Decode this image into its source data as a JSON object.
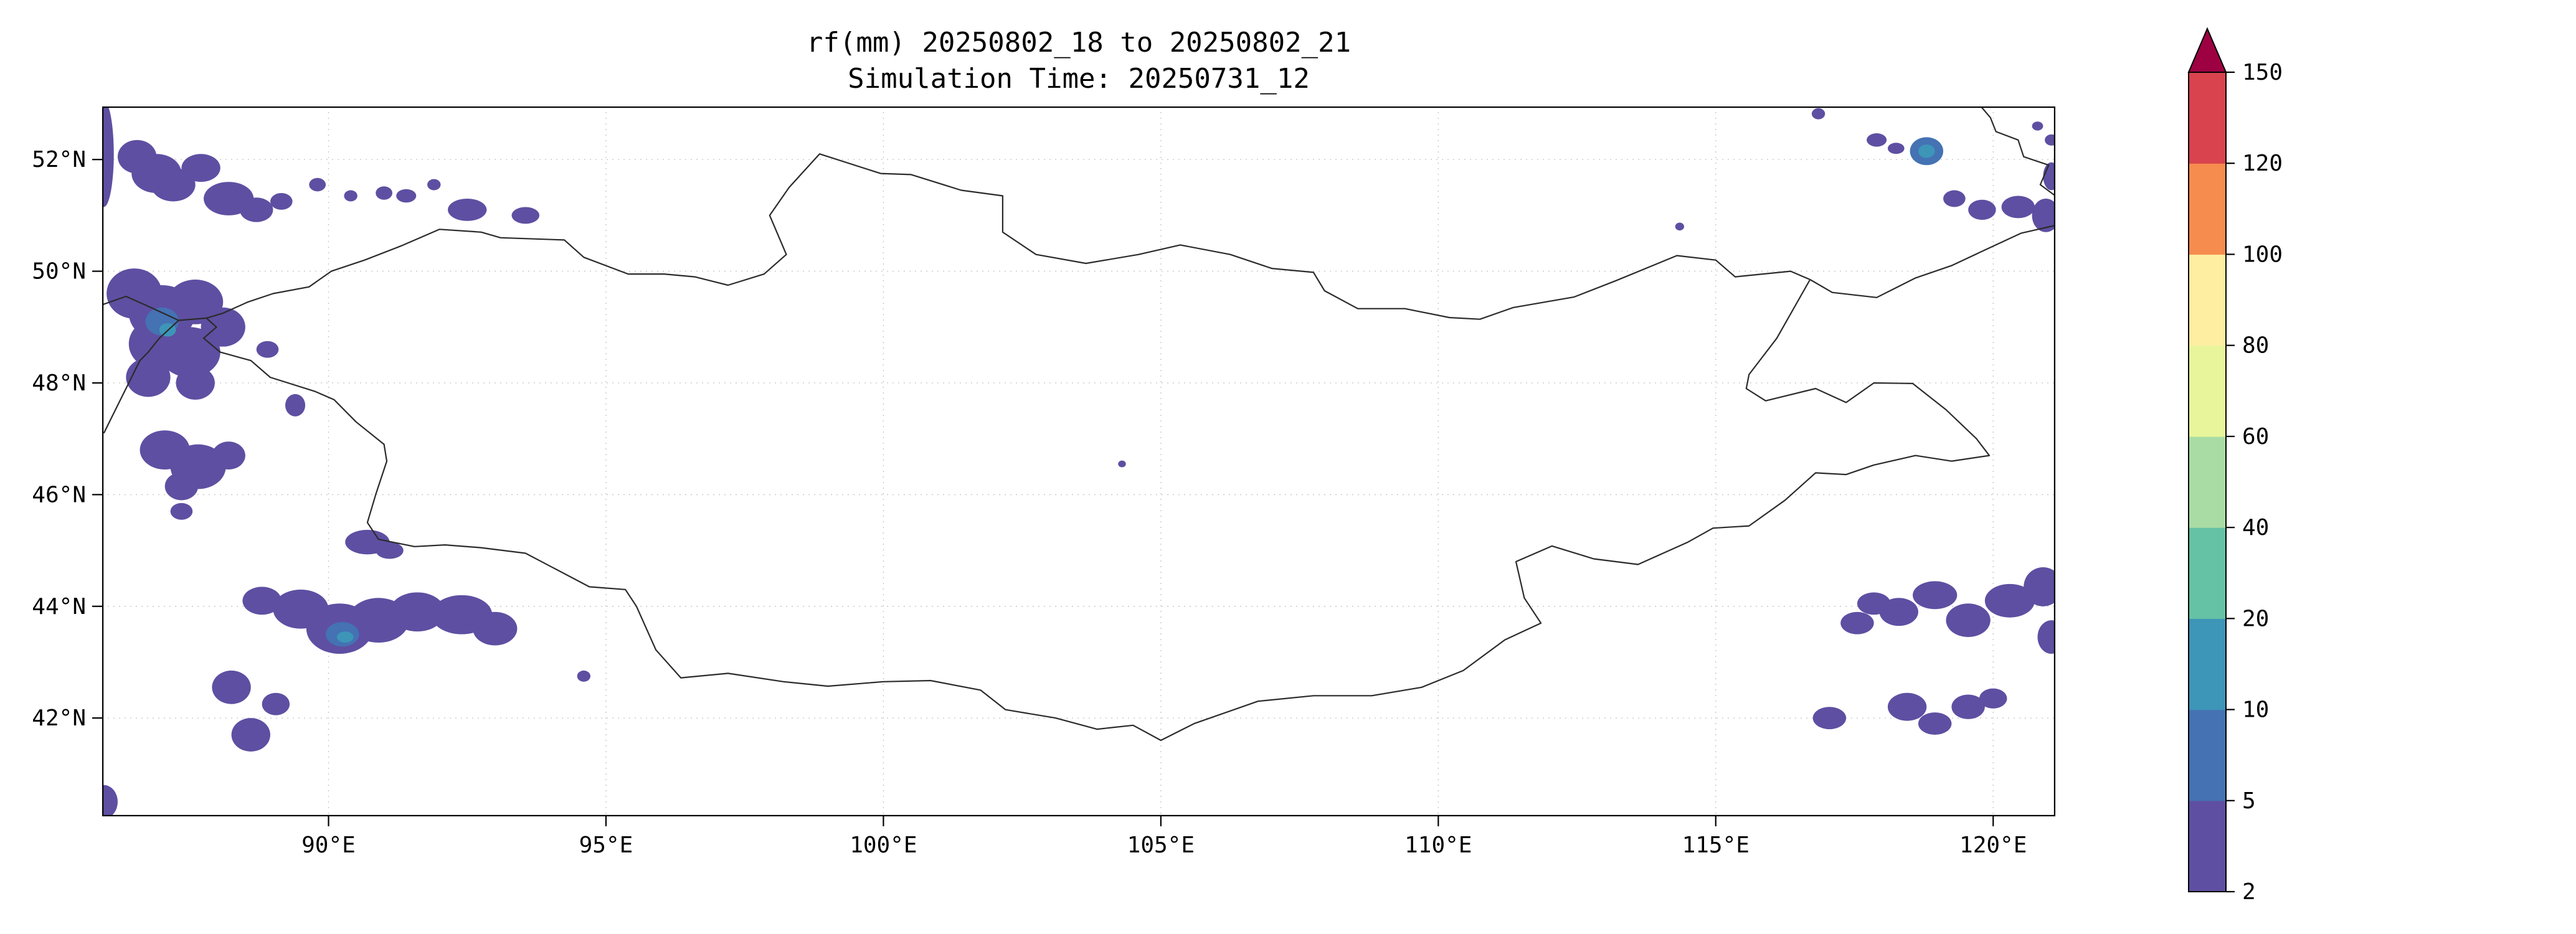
{
  "figure": {
    "title": "rf(mm) 20250802_18 to 20250802_21",
    "subtitle": "Simulation Time: 20250731_12"
  },
  "chart_data": {
    "type": "heatmap",
    "subtype": "filled-contour-precipitation-map",
    "title": "rf(mm) 20250802_18 to 20250802_21",
    "subtitle": "Simulation Time: 20250731_12",
    "variable": "rf",
    "unit": "mm",
    "lon_range": [
      85.92,
      121.12
    ],
    "lat_range": [
      40.24,
      52.95
    ],
    "grid": true,
    "x_ticks": [
      {
        "lon": 90,
        "label": "90°E"
      },
      {
        "lon": 95,
        "label": "95°E"
      },
      {
        "lon": 100,
        "label": "100°E"
      },
      {
        "lon": 105,
        "label": "105°E"
      },
      {
        "lon": 110,
        "label": "110°E"
      },
      {
        "lon": 115,
        "label": "115°E"
      },
      {
        "lon": 120,
        "label": "120°E"
      }
    ],
    "y_ticks": [
      {
        "lat": 52,
        "label": "52°N"
      },
      {
        "lat": 50,
        "label": "50°N"
      },
      {
        "lat": 48,
        "label": "48°N"
      },
      {
        "lat": 46,
        "label": "46°N"
      },
      {
        "lat": 44,
        "label": "44°N"
      },
      {
        "lat": 42,
        "label": "42°N"
      }
    ],
    "colorbar": {
      "levels": [
        2,
        5,
        10,
        20,
        40,
        60,
        80,
        100,
        120,
        150
      ],
      "colors": [
        "#5e4fa2",
        "#4472b3",
        "#3d95b8",
        "#66c2a5",
        "#a9dca4",
        "#e8f59b",
        "#fdeea2",
        "#f78c4f",
        "#d8434e"
      ],
      "extend_max_color": "#9e0142",
      "outline_color": "#000000"
    },
    "border_color": "#2b2b2b",
    "grid_color": "#c9c9c9",
    "borders": {
      "mongolia": [
        [
          87.8,
          49.16
        ],
        [
          88.1,
          49.25
        ],
        [
          88.55,
          49.45
        ],
        [
          89.0,
          49.6
        ],
        [
          89.65,
          49.72
        ],
        [
          90.05,
          50.0
        ],
        [
          90.65,
          50.2
        ],
        [
          91.3,
          50.45
        ],
        [
          92.0,
          50.75
        ],
        [
          92.75,
          50.7
        ],
        [
          93.1,
          50.6
        ],
        [
          94.25,
          50.56
        ],
        [
          94.6,
          50.25
        ],
        [
          95.4,
          49.95
        ],
        [
          96.05,
          49.95
        ],
        [
          96.6,
          49.9
        ],
        [
          97.2,
          49.75
        ],
        [
          97.85,
          49.95
        ],
        [
          98.25,
          50.3
        ],
        [
          97.95,
          51.0
        ],
        [
          98.3,
          51.5
        ],
        [
          98.85,
          52.1
        ],
        [
          99.95,
          51.75
        ],
        [
          100.5,
          51.73
        ],
        [
          101.4,
          51.45
        ],
        [
          102.15,
          51.35
        ],
        [
          102.15,
          50.7
        ],
        [
          102.75,
          50.3
        ],
        [
          103.65,
          50.14
        ],
        [
          104.6,
          50.3
        ],
        [
          105.35,
          50.47
        ],
        [
          106.25,
          50.3
        ],
        [
          107.0,
          50.05
        ],
        [
          107.75,
          49.98
        ],
        [
          107.95,
          49.65
        ],
        [
          108.55,
          49.33
        ],
        [
          109.4,
          49.33
        ],
        [
          110.2,
          49.17
        ],
        [
          110.75,
          49.14
        ],
        [
          111.35,
          49.35
        ],
        [
          112.45,
          49.54
        ],
        [
          113.2,
          49.83
        ],
        [
          114.3,
          50.28
        ],
        [
          115.0,
          50.2
        ],
        [
          115.35,
          49.9
        ],
        [
          116.35,
          50.0
        ],
        [
          116.7,
          49.85
        ],
        [
          116.1,
          48.8
        ],
        [
          115.6,
          48.15
        ],
        [
          115.55,
          47.9
        ],
        [
          115.9,
          47.68
        ],
        [
          116.8,
          47.9
        ],
        [
          117.35,
          47.65
        ],
        [
          117.85,
          48.0
        ],
        [
          118.55,
          47.99
        ],
        [
          119.15,
          47.52
        ],
        [
          119.7,
          47.0
        ],
        [
          119.93,
          46.7
        ],
        [
          119.25,
          46.6
        ],
        [
          118.6,
          46.7
        ],
        [
          117.85,
          46.53
        ],
        [
          117.35,
          46.36
        ],
        [
          116.8,
          46.39
        ],
        [
          116.25,
          45.9
        ],
        [
          115.6,
          45.44
        ],
        [
          114.95,
          45.4
        ],
        [
          114.5,
          45.15
        ],
        [
          113.6,
          44.75
        ],
        [
          112.8,
          44.85
        ],
        [
          112.05,
          45.08
        ],
        [
          111.4,
          44.8
        ],
        [
          111.55,
          44.15
        ],
        [
          111.85,
          43.7
        ],
        [
          111.2,
          43.4
        ],
        [
          110.45,
          42.85
        ],
        [
          109.7,
          42.55
        ],
        [
          108.8,
          42.4
        ],
        [
          107.75,
          42.4
        ],
        [
          106.75,
          42.3
        ],
        [
          105.6,
          41.9
        ],
        [
          105.0,
          41.6
        ],
        [
          104.5,
          41.87
        ],
        [
          103.85,
          41.8
        ],
        [
          103.1,
          42.0
        ],
        [
          102.2,
          42.15
        ],
        [
          101.75,
          42.5
        ],
        [
          100.85,
          42.67
        ],
        [
          100.0,
          42.65
        ],
        [
          99.0,
          42.57
        ],
        [
          98.2,
          42.65
        ],
        [
          97.2,
          42.8
        ],
        [
          96.35,
          42.72
        ],
        [
          95.9,
          43.22
        ],
        [
          95.55,
          44.0
        ],
        [
          95.35,
          44.3
        ],
        [
          94.7,
          44.35
        ],
        [
          93.55,
          44.95
        ],
        [
          92.75,
          45.05
        ],
        [
          92.1,
          45.1
        ],
        [
          91.55,
          45.07
        ],
        [
          90.9,
          45.2
        ],
        [
          90.7,
          45.5
        ],
        [
          90.85,
          46.0
        ],
        [
          91.05,
          46.6
        ],
        [
          91.0,
          46.9
        ],
        [
          90.5,
          47.3
        ],
        [
          90.1,
          47.7
        ],
        [
          89.75,
          47.85
        ],
        [
          88.95,
          48.1
        ],
        [
          88.6,
          48.4
        ],
        [
          88.05,
          48.55
        ],
        [
          87.75,
          48.8
        ],
        [
          87.98,
          49.0
        ],
        [
          87.8,
          49.16
        ]
      ],
      "west_1": [
        [
          85.92,
          49.4
        ],
        [
          86.35,
          49.55
        ],
        [
          86.8,
          49.35
        ],
        [
          87.3,
          49.12
        ],
        [
          87.8,
          49.16
        ]
      ],
      "west_2": [
        [
          87.3,
          49.12
        ],
        [
          86.95,
          48.8
        ],
        [
          86.75,
          48.55
        ],
        [
          86.6,
          48.4
        ],
        [
          86.25,
          47.7
        ],
        [
          85.95,
          47.1
        ]
      ],
      "northeast_1": [
        [
          116.7,
          49.85
        ],
        [
          117.1,
          49.62
        ],
        [
          117.9,
          49.53
        ],
        [
          118.6,
          49.88
        ],
        [
          119.25,
          50.1
        ],
        [
          119.85,
          50.38
        ],
        [
          120.5,
          50.68
        ],
        [
          121.12,
          50.82
        ]
      ],
      "northeast_2": [
        [
          121.12,
          51.35
        ],
        [
          120.85,
          51.55
        ],
        [
          121.0,
          51.9
        ],
        [
          120.55,
          52.05
        ],
        [
          120.45,
          52.35
        ],
        [
          120.05,
          52.5
        ],
        [
          119.95,
          52.75
        ],
        [
          119.78,
          52.95
        ]
      ]
    },
    "rain_cells": [
      [
        85.95,
        52.1,
        0.18,
        0.95,
        0
      ],
      [
        86.55,
        52.05,
        0.35,
        0.3,
        0
      ],
      [
        86.9,
        51.75,
        0.45,
        0.35,
        0
      ],
      [
        87.2,
        51.55,
        0.4,
        0.3,
        0
      ],
      [
        87.7,
        51.85,
        0.35,
        0.25,
        0
      ],
      [
        88.2,
        51.3,
        0.45,
        0.3,
        0
      ],
      [
        88.7,
        51.1,
        0.3,
        0.22,
        0
      ],
      [
        89.15,
        51.25,
        0.2,
        0.15,
        0
      ],
      [
        89.8,
        51.55,
        0.15,
        0.12,
        0
      ],
      [
        90.4,
        51.35,
        0.12,
        0.1,
        0
      ],
      [
        91.0,
        51.4,
        0.15,
        0.12,
        0
      ],
      [
        91.4,
        51.35,
        0.18,
        0.12,
        0
      ],
      [
        91.9,
        51.55,
        0.12,
        0.1,
        0
      ],
      [
        92.5,
        51.1,
        0.35,
        0.2,
        0
      ],
      [
        93.55,
        51.0,
        0.25,
        0.15,
        0
      ],
      [
        86.5,
        49.6,
        0.5,
        0.45,
        0
      ],
      [
        87.0,
        49.25,
        0.6,
        0.5,
        0
      ],
      [
        87.6,
        49.45,
        0.5,
        0.4,
        0
      ],
      [
        86.9,
        48.7,
        0.5,
        0.45,
        0
      ],
      [
        87.5,
        48.55,
        0.55,
        0.45,
        0
      ],
      [
        88.1,
        49.0,
        0.4,
        0.35,
        0
      ],
      [
        86.75,
        48.1,
        0.4,
        0.35,
        0
      ],
      [
        87.6,
        48.0,
        0.35,
        0.3,
        0
      ],
      [
        87.0,
        49.1,
        0.3,
        0.25,
        1
      ],
      [
        87.1,
        48.95,
        0.15,
        0.12,
        2
      ],
      [
        88.9,
        48.6,
        0.2,
        0.15,
        0
      ],
      [
        89.4,
        47.6,
        0.18,
        0.2,
        0
      ],
      [
        87.05,
        46.8,
        0.45,
        0.35,
        0
      ],
      [
        87.65,
        46.5,
        0.5,
        0.4,
        0
      ],
      [
        88.2,
        46.7,
        0.3,
        0.25,
        0
      ],
      [
        87.35,
        46.15,
        0.3,
        0.25,
        0
      ],
      [
        87.35,
        45.7,
        0.2,
        0.15,
        0
      ],
      [
        90.7,
        45.15,
        0.4,
        0.22,
        0
      ],
      [
        91.1,
        45.0,
        0.25,
        0.15,
        0
      ],
      [
        88.8,
        44.1,
        0.35,
        0.25,
        0
      ],
      [
        89.5,
        43.95,
        0.5,
        0.35,
        0
      ],
      [
        90.2,
        43.6,
        0.6,
        0.45,
        0
      ],
      [
        90.9,
        43.75,
        0.55,
        0.4,
        0
      ],
      [
        91.6,
        43.9,
        0.5,
        0.35,
        0
      ],
      [
        92.4,
        43.85,
        0.55,
        0.35,
        0
      ],
      [
        93.0,
        43.6,
        0.4,
        0.3,
        0
      ],
      [
        90.25,
        43.5,
        0.3,
        0.22,
        1
      ],
      [
        90.3,
        43.45,
        0.15,
        0.1,
        2
      ],
      [
        88.25,
        42.55,
        0.35,
        0.3,
        0
      ],
      [
        88.6,
        41.7,
        0.35,
        0.3,
        0
      ],
      [
        89.05,
        42.25,
        0.25,
        0.2,
        0
      ],
      [
        94.6,
        42.75,
        0.12,
        0.1,
        0
      ],
      [
        85.95,
        40.5,
        0.25,
        0.3,
        0
      ],
      [
        104.3,
        46.55,
        0.07,
        0.06,
        0
      ],
      [
        117.9,
        52.35,
        0.18,
        0.12,
        0
      ],
      [
        118.25,
        52.2,
        0.15,
        0.1,
        0
      ],
      [
        116.85,
        52.82,
        0.12,
        0.1,
        0
      ],
      [
        118.8,
        52.15,
        0.3,
        0.25,
        1
      ],
      [
        118.8,
        52.15,
        0.15,
        0.12,
        2
      ],
      [
        119.3,
        51.3,
        0.2,
        0.15,
        0
      ],
      [
        119.8,
        51.1,
        0.25,
        0.18,
        0
      ],
      [
        120.45,
        51.15,
        0.3,
        0.2,
        0
      ],
      [
        120.95,
        51.0,
        0.25,
        0.3,
        0
      ],
      [
        121.05,
        51.7,
        0.15,
        0.25,
        0
      ],
      [
        121.05,
        52.35,
        0.12,
        0.1,
        0
      ],
      [
        120.8,
        52.6,
        0.1,
        0.08,
        0
      ],
      [
        114.35,
        50.8,
        0.08,
        0.07,
        0
      ],
      [
        117.55,
        43.7,
        0.3,
        0.2,
        0
      ],
      [
        117.85,
        44.05,
        0.3,
        0.2,
        0
      ],
      [
        118.3,
        43.9,
        0.35,
        0.25,
        0
      ],
      [
        118.95,
        44.2,
        0.4,
        0.25,
        0
      ],
      [
        119.55,
        43.75,
        0.4,
        0.3,
        0
      ],
      [
        120.3,
        44.1,
        0.45,
        0.3,
        0
      ],
      [
        120.9,
        44.35,
        0.35,
        0.35,
        0
      ],
      [
        121.05,
        43.45,
        0.25,
        0.3,
        0
      ],
      [
        117.05,
        42.0,
        0.3,
        0.2,
        0
      ],
      [
        118.45,
        42.2,
        0.35,
        0.25,
        0
      ],
      [
        118.95,
        41.9,
        0.3,
        0.2,
        0
      ],
      [
        119.55,
        42.2,
        0.3,
        0.22,
        0
      ],
      [
        120.0,
        42.35,
        0.25,
        0.18,
        0
      ]
    ]
  }
}
